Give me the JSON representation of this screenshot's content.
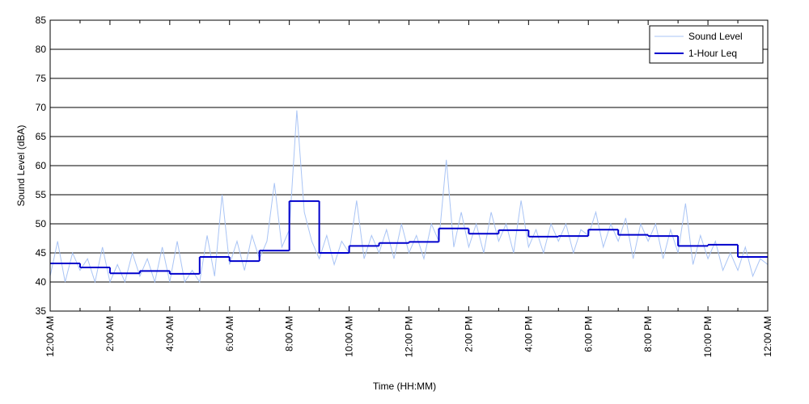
{
  "chart_data": {
    "type": "line",
    "xlabel": "Time (HH:MM)",
    "ylabel": "Sound Level (dBA)",
    "xlim": [
      0,
      24
    ],
    "ylim": [
      35,
      85
    ],
    "yticks": [
      35,
      40,
      45,
      50,
      55,
      60,
      65,
      70,
      75,
      80,
      85
    ],
    "xticks": [
      {
        "value": 0,
        "label": "12:00 AM"
      },
      {
        "value": 2,
        "label": "2:00 AM"
      },
      {
        "value": 4,
        "label": "4:00 AM"
      },
      {
        "value": 6,
        "label": "6:00 AM"
      },
      {
        "value": 8,
        "label": "8:00 AM"
      },
      {
        "value": 10,
        "label": "10:00 AM"
      },
      {
        "value": 12,
        "label": "12:00 PM"
      },
      {
        "value": 14,
        "label": "2:00 PM"
      },
      {
        "value": 16,
        "label": "4:00 PM"
      },
      {
        "value": 18,
        "label": "6:00 PM"
      },
      {
        "value": 20,
        "label": "8:00 PM"
      },
      {
        "value": 22,
        "label": "10:00 PM"
      },
      {
        "value": 24,
        "label": "12:00 AM"
      }
    ],
    "grid": true,
    "legend": "upper right",
    "series": [
      {
        "name": "Sound Level",
        "color": "#a9c4f5",
        "x": [
          0,
          0.25,
          0.5,
          0.75,
          1,
          1.25,
          1.5,
          1.75,
          2,
          2.25,
          2.5,
          2.75,
          3,
          3.25,
          3.5,
          3.75,
          4,
          4.25,
          4.5,
          4.75,
          5,
          5.25,
          5.5,
          5.75,
          6,
          6.25,
          6.5,
          6.75,
          7,
          7.25,
          7.5,
          7.75,
          8,
          8.25,
          8.5,
          8.75,
          9,
          9.25,
          9.5,
          9.75,
          10,
          10.25,
          10.5,
          10.75,
          11,
          11.25,
          11.5,
          11.75,
          12,
          12.25,
          12.5,
          12.75,
          13,
          13.25,
          13.5,
          13.75,
          14,
          14.25,
          14.5,
          14.75,
          15,
          15.25,
          15.5,
          15.75,
          16,
          16.25,
          16.5,
          16.75,
          17,
          17.25,
          17.5,
          17.75,
          18,
          18.25,
          18.5,
          18.75,
          19,
          19.25,
          19.5,
          19.75,
          20,
          20.25,
          20.5,
          20.75,
          21,
          21.25,
          21.5,
          21.75,
          22,
          22.25,
          22.5,
          22.75,
          23,
          23.25,
          23.5,
          23.75,
          24
        ],
        "values": [
          41,
          47,
          40,
          45,
          42,
          44,
          40,
          46,
          40,
          43,
          40,
          45,
          41,
          44,
          40,
          46,
          40,
          47,
          40,
          42,
          40,
          48,
          41,
          55,
          43,
          47,
          42,
          48,
          44,
          47,
          57,
          46,
          49,
          69.5,
          52,
          47,
          44,
          48,
          43,
          47,
          45,
          54,
          44,
          48,
          45,
          49,
          44,
          50,
          45,
          48,
          44,
          50,
          47,
          61,
          46,
          52,
          46,
          50,
          45,
          52,
          47,
          50,
          45,
          54,
          46,
          49,
          45,
          50,
          47,
          50,
          45,
          49,
          48,
          52,
          46,
          50,
          47,
          51,
          44,
          50,
          47,
          50,
          44,
          49,
          45,
          53.5,
          43,
          48,
          44,
          47,
          42,
          45,
          42,
          46,
          41,
          44,
          43
        ]
      },
      {
        "name": "1-Hour Leq",
        "color": "#0000cc",
        "x": [
          0,
          1,
          2,
          3,
          4,
          5,
          6,
          7,
          8,
          9,
          10,
          11,
          12,
          13,
          14,
          15,
          16,
          17,
          18,
          19,
          20,
          21,
          22,
          23
        ],
        "values": [
          43.2,
          42.5,
          41.5,
          41.9,
          41.4,
          44.3,
          43.6,
          45.4,
          53.9,
          45.0,
          46.2,
          46.7,
          46.9,
          49.2,
          48.3,
          48.9,
          47.8,
          47.9,
          49.0,
          48.1,
          47.9,
          46.2,
          46.4,
          44.3
        ]
      }
    ]
  }
}
